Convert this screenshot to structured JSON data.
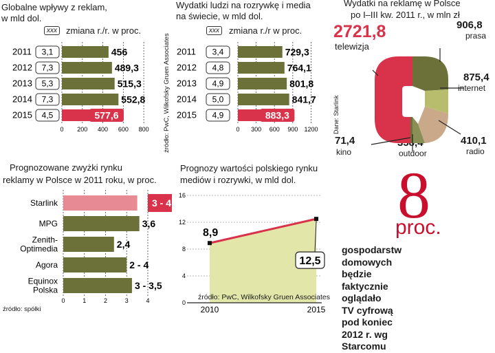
{
  "colors": {
    "olive": "#6b7138",
    "olive_light": "#8a8f55",
    "red": "#d8334a",
    "pink": "#e88a93",
    "tan": "#c9a98a",
    "green_light": "#b7bd6c",
    "grid": "#444444"
  },
  "chart_data": [
    {
      "id": "global_ad_revenue",
      "type": "bar",
      "title_lines": [
        "Globalne wpływy z reklam,",
        "w mld dol."
      ],
      "legend_box": "xxx",
      "legend_label": "zmiana r./r. w proc.",
      "categories": [
        "2011",
        "2012",
        "2013",
        "2014",
        "2015"
      ],
      "change_labels": [
        "3,1",
        "7,3",
        "5,3",
        "7,3",
        "4,5"
      ],
      "values": [
        456,
        489.3,
        515.3,
        552.8,
        577.6
      ],
      "value_labels": [
        "456",
        "489,3",
        "515,3",
        "552,8",
        "577,6"
      ],
      "highlight_index": 4,
      "xticks": [
        "0",
        "200",
        "400",
        "600",
        "800"
      ],
      "xlim": [
        0,
        900
      ]
    },
    {
      "id": "media_spending",
      "type": "bar",
      "title_lines": [
        "Wydatki ludzi na rozrywkę i media",
        "na świecie, w mld dol."
      ],
      "legend_box": "xxx",
      "legend_label": "zmiana r./r w proc.",
      "categories": [
        "2011",
        "2012",
        "2013",
        "2014",
        "2015"
      ],
      "change_labels": [
        "3,4",
        "4,8",
        "4,9",
        "5,0",
        "4,9"
      ],
      "values": [
        729.3,
        764.1,
        801.8,
        841.7,
        883.3
      ],
      "value_labels": [
        "729,3",
        "764,1",
        "801,8",
        "841,7",
        "883,3"
      ],
      "highlight_index": 4,
      "xticks": [
        "0",
        "300",
        "600",
        "900",
        "1200"
      ],
      "xlim": [
        0,
        1330
      ],
      "source": "źródło: PwC, Wilkofsky Gruen Associates"
    },
    {
      "id": "poland_ad_spending",
      "type": "pie",
      "title_lines": [
        "Wydatki na reklamę w Polsce",
        "po I–III kw. 2011 r., w mln zł"
      ],
      "segments": [
        {
          "label": "telewizja",
          "value": 2721.8,
          "value_label": "2721,8"
        },
        {
          "label": "prasa",
          "value": 906.8,
          "value_label": "906,8"
        },
        {
          "label": "internet",
          "value": 875.4,
          "value_label": "875,4"
        },
        {
          "label": "radio",
          "value": 410.1,
          "value_label": "410,1"
        },
        {
          "label": "outdoor",
          "value": 358.4,
          "value_label": "358,4"
        },
        {
          "label": "kino",
          "value": 71.4,
          "value_label": "71,4"
        }
      ],
      "source": "Dane: Starlink"
    },
    {
      "id": "forecast_ad_growth",
      "type": "bar",
      "title_lines": [
        "Prognozowane zwyżki rynku",
        "reklamy w Polsce w 2011 roku, w proc."
      ],
      "categories": [
        "Starlink",
        "MPG",
        "Zenith-\nOptimedia",
        "Agora",
        "Equinox\nPolska"
      ],
      "values": [
        3.5,
        3.6,
        2.4,
        3.0,
        3.25
      ],
      "value_labels": [
        "3 - 4",
        "3,6",
        "2,4",
        "2 - 4",
        "3 - 3,5"
      ],
      "highlight_index": 0,
      "xticks": [
        "0",
        "1",
        "2",
        "3",
        "4"
      ],
      "xlim": [
        0,
        4
      ],
      "source": "źródło: spółki"
    },
    {
      "id": "media_retail_forecast",
      "type": "line",
      "title_lines": [
        "Prognozy wartości polskiego rynku",
        "mediów i rozrywki, w mld dol."
      ],
      "x": [
        2010,
        2015
      ],
      "y": [
        8.9,
        12.5
      ],
      "value_labels": [
        "8,9",
        "12,5"
      ],
      "yticks": [
        "0",
        "4",
        "8",
        "12",
        "16"
      ],
      "ylim": [
        0,
        16
      ],
      "xticks": [
        "2010",
        "2015"
      ],
      "source": "źródło: PwC, Wilkofsky Gruen Associates"
    }
  ],
  "callout": {
    "number": "8",
    "unit": "proc.",
    "text_lines": [
      "gospodarstw",
      "domowych będzie",
      "faktycznie oglądało",
      "TV cyfrową pod koniec",
      "2012 r. wg Starcomu"
    ]
  }
}
